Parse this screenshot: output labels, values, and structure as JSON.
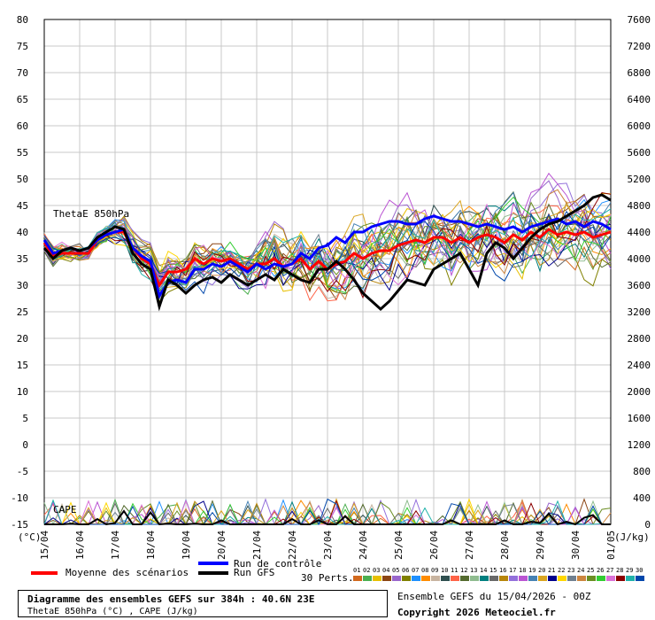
{
  "chart_data": {
    "type": "line",
    "left_axis": {
      "ticks": [
        80,
        75,
        70,
        65,
        60,
        55,
        50,
        45,
        40,
        35,
        30,
        25,
        20,
        15,
        10,
        5,
        0,
        -5,
        -10,
        -15
      ],
      "unit_label": "(°C)",
      "ylim": [
        -15,
        80
      ]
    },
    "right_axis": {
      "ticks": [
        7600,
        7200,
        6800,
        6400,
        6000,
        5600,
        5200,
        4800,
        4400,
        4000,
        3600,
        3200,
        2800,
        2400,
        2000,
        1600,
        1200,
        800,
        400,
        0
      ],
      "unit_label": "(J/kg)",
      "ylim": [
        0,
        7600
      ]
    },
    "x_labels": [
      "15/04",
      "16/04",
      "17/04",
      "18/04",
      "19/04",
      "20/04",
      "21/04",
      "22/04",
      "23/04",
      "24/04",
      "25/04",
      "26/04",
      "27/04",
      "28/04",
      "29/04",
      "30/04",
      "01/05"
    ],
    "grid": true,
    "annotations": {
      "thetae": "ThetaE 850hPa",
      "cape": "CAPE"
    },
    "series": [
      {
        "name": "Moyenne des scénarios",
        "color": "#ff0000",
        "values": [
          38,
          35.5,
          36,
          36,
          36,
          36,
          38.5,
          39.5,
          40,
          40,
          37,
          35,
          34,
          30,
          32.5,
          32.5,
          33,
          35,
          34,
          35,
          34.5,
          35,
          34,
          33,
          34,
          34,
          35,
          33.5,
          34,
          35,
          33,
          34.5,
          33,
          34,
          34.5,
          36,
          35,
          36,
          36.5,
          36.5,
          37.5,
          38,
          38.5,
          38,
          39,
          39,
          38,
          39,
          38,
          39,
          39.5,
          39,
          38,
          39.5,
          38.5,
          40,
          39,
          40.5,
          39.5,
          40,
          39.5,
          40,
          39,
          39.5,
          40
        ]
      },
      {
        "name": "Run de contrôle",
        "color": "#0000ff",
        "values": [
          38.5,
          36,
          36.5,
          37,
          36.5,
          37,
          38.5,
          39.5,
          40,
          40.5,
          37,
          35.5,
          34.5,
          28,
          30.5,
          31,
          30.5,
          33,
          33,
          34,
          33.5,
          34.5,
          33.5,
          32.5,
          34,
          33,
          34,
          33.5,
          34,
          36,
          35,
          37,
          37.5,
          39,
          38,
          40,
          40,
          41,
          41.5,
          42,
          42,
          41.5,
          41.5,
          42.5,
          43,
          42.5,
          42,
          42,
          41.5,
          41,
          41.5,
          41,
          40.5,
          41,
          40,
          41,
          41.5,
          42,
          42.5,
          41.5,
          42,
          41,
          42,
          41.5,
          40.5
        ]
      },
      {
        "name": "Run GFS",
        "color": "#000000",
        "values": [
          37,
          35,
          36.5,
          37,
          36.5,
          37,
          39,
          40,
          41,
          40.5,
          36,
          34,
          33,
          26,
          31,
          30,
          28.5,
          30,
          31,
          31.5,
          30.5,
          32,
          31,
          30,
          31,
          32,
          31,
          33,
          32,
          31,
          30.5,
          33,
          33,
          34.5,
          33,
          31,
          28.5,
          27,
          25.5,
          27,
          29,
          31,
          30.5,
          30,
          33,
          34,
          35,
          36,
          33,
          30,
          36,
          38,
          37,
          35,
          37,
          39,
          40.5,
          41.5,
          42,
          43,
          44,
          45,
          46.5,
          47,
          46
        ]
      }
    ],
    "cape_series_color": "#000000",
    "cape_values": [
      0,
      0,
      0,
      10,
      0,
      0,
      80,
      0,
      20,
      200,
      0,
      0,
      180,
      0,
      10,
      0,
      0,
      10,
      0,
      0,
      60,
      0,
      0,
      0,
      0,
      0,
      0,
      0,
      80,
      0,
      0,
      60,
      0,
      0,
      120,
      0,
      0,
      0,
      0,
      0,
      0,
      0,
      0,
      0,
      0,
      0,
      60,
      0,
      0,
      0,
      0,
      0,
      60,
      0,
      0,
      40,
      20,
      160,
      0,
      40,
      0,
      100,
      140,
      0,
      0
    ]
  },
  "legend": {
    "mean": "Moyenne des scénarios",
    "control": "Run de contrôle",
    "gfs": "Run GFS",
    "perts_label": "30 Perts.",
    "pert_numbers": [
      "01",
      "02",
      "03",
      "04",
      "05",
      "06",
      "07",
      "08",
      "09",
      "10",
      "11",
      "12",
      "13",
      "14",
      "15",
      "16",
      "17",
      "18",
      "19",
      "20",
      "21",
      "22",
      "23",
      "24",
      "25",
      "26",
      "27",
      "28",
      "29",
      "30"
    ],
    "pert_colors": [
      "#d2691e",
      "#4caf50",
      "#e8c000",
      "#8b4513",
      "#9966cc",
      "#808000",
      "#1e90ff",
      "#ff8c00",
      "#c8b4a0",
      "#2f4f4f",
      "#ff6347",
      "#556b2f",
      "#8fbc8f",
      "#008080",
      "#696969",
      "#b8860b",
      "#9370db",
      "#ba55d3",
      "#4682b4",
      "#daa520",
      "#00008b",
      "#ffd700",
      "#708090",
      "#cd853f",
      "#6b8e23",
      "#32cd32",
      "#da70d6",
      "#8b0000",
      "#20b2aa",
      "#0047ab"
    ]
  },
  "info": {
    "title": "Diagramme des ensembles GEFS sur 384h : 40.6N 23E",
    "subtitle": "ThetaE 850hPa (°C) , CAPE (J/kg)",
    "run": "Ensemble GEFS du 15/04/2026 - 00Z",
    "copyright": "Copyright 2026 Meteociel.fr"
  }
}
